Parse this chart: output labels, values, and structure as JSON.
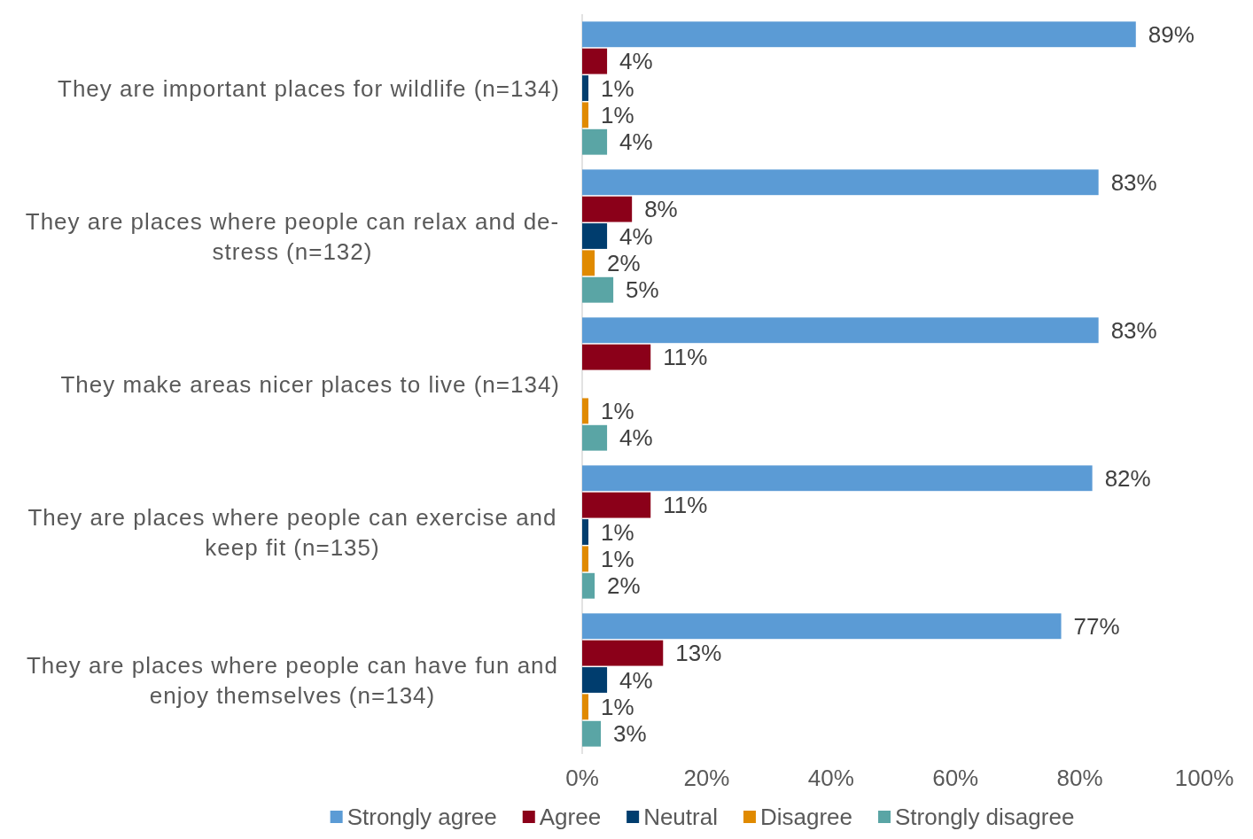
{
  "chart_data": {
    "type": "bar",
    "orientation": "horizontal",
    "categories": [
      "They are important places for wildlife (n=134)",
      "They are places where people can relax and de-stress (n=132)",
      "They make areas nicer places to live (n=134)",
      "They are places where people can exercise and keep fit (n=135)",
      "They are places where people can have fun and enjoy themselves (n=134)"
    ],
    "series": [
      {
        "name": "Strongly agree",
        "color": "#5b9bd5",
        "values": [
          89,
          83,
          83,
          82,
          77
        ],
        "value_labels": [
          "89%",
          "83%",
          "83%",
          "82%",
          "77%"
        ]
      },
      {
        "name": "Agree",
        "color": "#8b0019",
        "values": [
          4,
          8,
          11,
          11,
          13
        ],
        "value_labels": [
          "4%",
          "8%",
          "11%",
          "11%",
          "13%"
        ]
      },
      {
        "name": "Neutral",
        "color": "#003d6e",
        "values": [
          1,
          4,
          null,
          1,
          4
        ],
        "value_labels": [
          "1%",
          "4%",
          null,
          "1%",
          "4%"
        ]
      },
      {
        "name": "Disagree",
        "color": "#e08a00",
        "values": [
          1,
          2,
          1,
          1,
          1
        ],
        "value_labels": [
          "1%",
          "2%",
          "1%",
          "1%",
          "1%"
        ]
      },
      {
        "name": "Strongly disagree",
        "color": "#5aa5a5",
        "values": [
          4,
          5,
          4,
          2,
          3
        ],
        "value_labels": [
          "4%",
          "5%",
          "4%",
          "2%",
          "3%"
        ]
      }
    ],
    "xlim": [
      0,
      100
    ],
    "xticks": [
      {
        "value": 0,
        "label": "0%"
      },
      {
        "value": 20,
        "label": "20%"
      },
      {
        "value": 40,
        "label": "40%"
      },
      {
        "value": 60,
        "label": "60%"
      },
      {
        "value": 80,
        "label": "80%"
      },
      {
        "value": 100,
        "label": "100%"
      }
    ],
    "grid": false,
    "legend": "bottom"
  }
}
